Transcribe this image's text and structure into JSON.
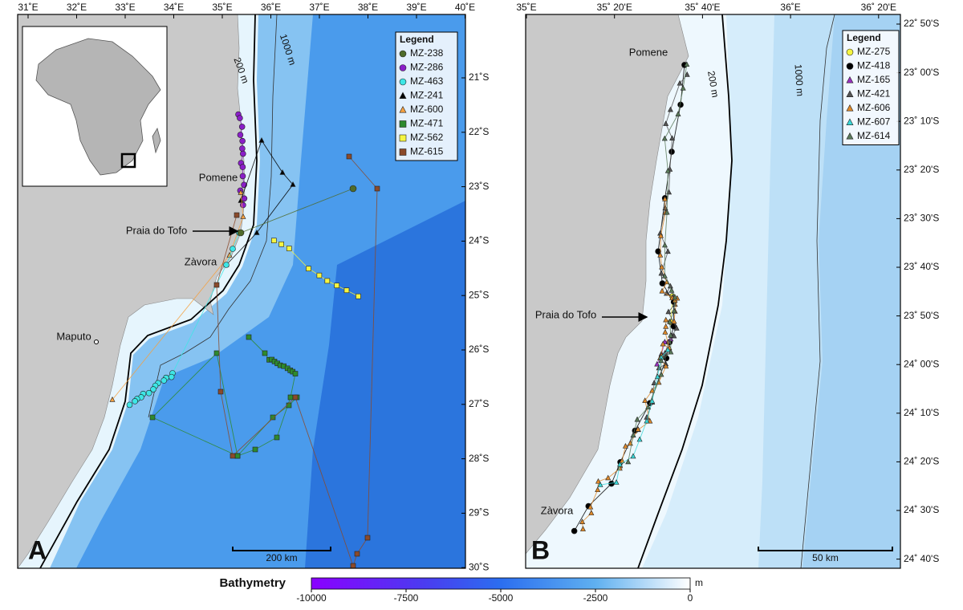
{
  "panels": [
    {
      "label": "A",
      "x_ticks": [
        "31˚E",
        "32˚E",
        "33˚E",
        "34˚E",
        "35˚E",
        "36˚E",
        "37˚E",
        "38˚E",
        "39˚E",
        "40˚E"
      ],
      "y_ticks": [
        "21˚S",
        "22˚S",
        "23˚S",
        "24˚S",
        "25˚S",
        "26˚S",
        "27˚S",
        "28˚S",
        "29˚S",
        "30˚S"
      ],
      "legend": {
        "title": "Legend",
        "items": [
          {
            "name": "MZ-238",
            "color": "#4f6b2a",
            "marker": "circle"
          },
          {
            "name": "MZ-286",
            "color": "#8a1fc8",
            "marker": "circle"
          },
          {
            "name": "MZ-463",
            "color": "#3ee6e6",
            "marker": "circle"
          },
          {
            "name": "MZ-241",
            "color": "#000000",
            "marker": "triangle"
          },
          {
            "name": "MZ-600",
            "color": "#f5a040",
            "marker": "triangle"
          },
          {
            "name": "MZ-471",
            "color": "#2e8a2e",
            "marker": "square"
          },
          {
            "name": "MZ-562",
            "color": "#f5f542",
            "marker": "square"
          },
          {
            "name": "MZ-615",
            "color": "#8b4a2b",
            "marker": "square"
          }
        ]
      },
      "places": [
        "Pomene",
        "Praia do Tofo",
        "Zàvora",
        "Maputo"
      ],
      "contours": [
        "200 m",
        "1000 m"
      ],
      "scale_bar": "200 km"
    },
    {
      "label": "B",
      "x_ticks": [
        "35˚E",
        "35˚ 20'E",
        "35˚ 40'E",
        "36˚E",
        "36˚ 20'E"
      ],
      "y_ticks": [
        "22˚ 50'S",
        "23˚ 00'S",
        "23˚ 10'S",
        "23˚ 20'S",
        "23˚ 30'S",
        "23˚ 40'S",
        "23˚ 50'S",
        "24˚ 00'S",
        "24˚ 10'S",
        "24˚ 20'S",
        "24˚ 30'S",
        "24˚ 40'S"
      ],
      "legend": {
        "title": "Legend",
        "items": [
          {
            "name": "MZ-275",
            "color": "#f5f542",
            "marker": "circle"
          },
          {
            "name": "MZ-418",
            "color": "#000000",
            "marker": "circle"
          },
          {
            "name": "MZ-165",
            "color": "#9a30c0",
            "marker": "triangle"
          },
          {
            "name": "MZ-421",
            "color": "#555555",
            "marker": "triangle"
          },
          {
            "name": "MZ-606",
            "color": "#e08a2a",
            "marker": "triangle"
          },
          {
            "name": "MZ-607",
            "color": "#3ad8d8",
            "marker": "triangle"
          },
          {
            "name": "MZ-614",
            "color": "#5a7a5a",
            "marker": "triangle"
          }
        ]
      },
      "places": [
        "Pomene",
        "Praia do Tofo",
        "Zàvora"
      ],
      "contours": [
        "200 m",
        "1000 m"
      ],
      "scale_bar": "50 km"
    }
  ],
  "colorbar": {
    "title": "Bathymetry",
    "unit": "m",
    "lim": [
      -10000,
      0
    ],
    "ticks": [
      -10000,
      -7500,
      -5000,
      -2500,
      0
    ]
  }
}
